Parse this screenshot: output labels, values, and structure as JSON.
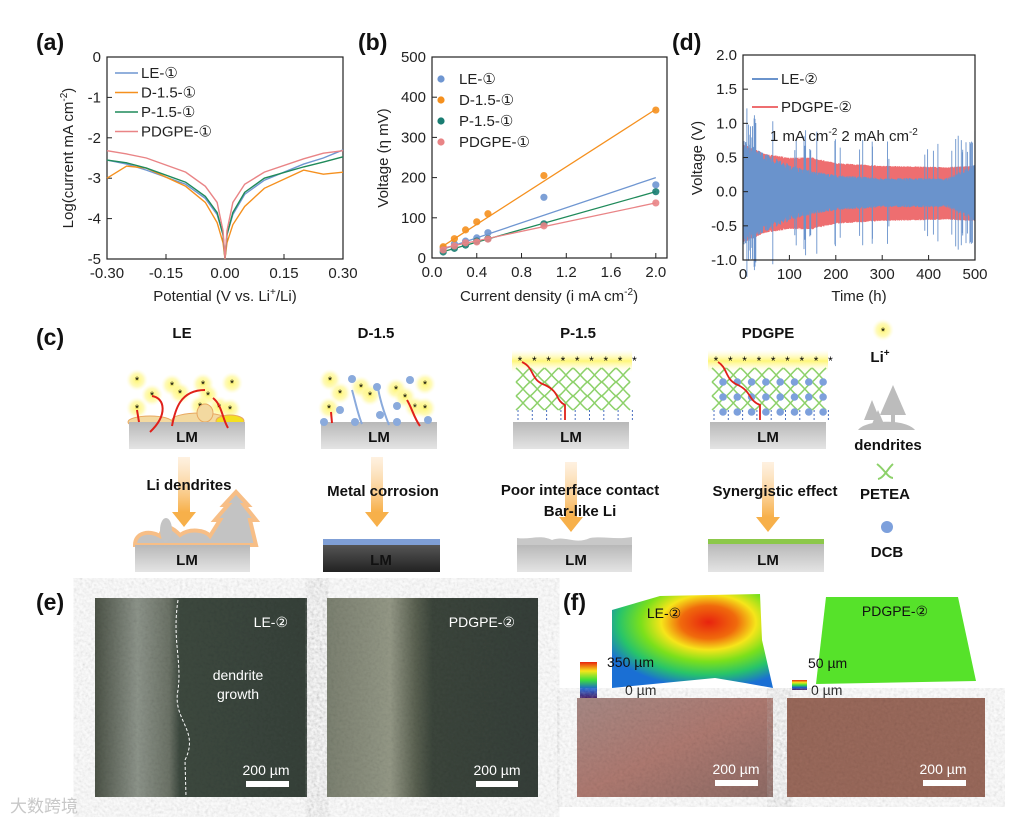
{
  "panel_labels": {
    "a": "(a)",
    "b": "(b)",
    "c": "(c)",
    "d": "(d)",
    "e": "(e)",
    "f": "(f)"
  },
  "colors": {
    "LE": "#6f96d1",
    "D": "#f5901e",
    "P": "#1f8a5a",
    "PDGPE": "#e98486",
    "P_marker": "#1a7d72",
    "LE_d": "#6a93cc",
    "PDGPE_d": "#ee6e70"
  },
  "chart_data": [
    {
      "id": "a",
      "type": "line",
      "xlabel_parts": [
        "Potential (V vs. Li",
        "+",
        "/Li)"
      ],
      "ylabel_parts": [
        "Log(current mA cm",
        "-2",
        ")"
      ],
      "xlim": [
        -0.3,
        0.3
      ],
      "ylim": [
        -5,
        0
      ],
      "xticks": [
        "-0.30",
        "-0.15",
        "0.00",
        "0.15",
        "0.30"
      ],
      "xtick_values": [
        -0.3,
        -0.15,
        0,
        0.15,
        0.3
      ],
      "yticks": [
        "0",
        "-1",
        "-2",
        "-3",
        "-4",
        "-5"
      ],
      "ytick_values": [
        0,
        -1,
        -2,
        -3,
        -4,
        -5
      ],
      "legend_position": "top-left",
      "x": [
        -0.3,
        -0.25,
        -0.2,
        -0.1,
        -0.05,
        -0.02,
        -0.005,
        0,
        0.005,
        0.02,
        0.05,
        0.1,
        0.2,
        0.25,
        0.3
      ],
      "series": [
        {
          "name": "LE-①",
          "key": "LE",
          "values": [
            -2.55,
            -2.65,
            -2.8,
            -3.15,
            -3.5,
            -3.9,
            -4.4,
            -5,
            -4.4,
            -3.9,
            -3.4,
            -3.05,
            -2.65,
            -2.5,
            -2.3
          ]
        },
        {
          "name": "D-1.5-①",
          "key": "D",
          "values": [
            -3.0,
            -2.7,
            -2.75,
            -3.2,
            -3.6,
            -4.1,
            -4.6,
            -5,
            -4.6,
            -4.15,
            -3.7,
            -3.25,
            -2.8,
            -2.9,
            -2.85
          ]
        },
        {
          "name": "P-1.5-①",
          "key": "P",
          "values": [
            -2.55,
            -2.62,
            -2.75,
            -3.1,
            -3.45,
            -3.85,
            -4.4,
            -5,
            -4.4,
            -3.85,
            -3.35,
            -3.0,
            -2.72,
            -2.6,
            -2.47
          ]
        },
        {
          "name": "PDGPE-①",
          "key": "PDGPE",
          "values": [
            -2.32,
            -2.4,
            -2.5,
            -2.85,
            -3.2,
            -3.6,
            -4.3,
            -5,
            -4.3,
            -3.6,
            -3.15,
            -2.85,
            -2.52,
            -2.38,
            -2.32
          ]
        }
      ]
    },
    {
      "id": "b",
      "type": "scatter",
      "xlabel_parts": [
        "Current density (i mA cm",
        "-2",
        ")"
      ],
      "ylabel": "Voltage (η mV)",
      "xlim": [
        0,
        2.1
      ],
      "ylim": [
        0,
        500
      ],
      "xticks": [
        "0.0",
        "0.4",
        "0.8",
        "1.2",
        "1.6",
        "2.0"
      ],
      "xtick_values": [
        0,
        0.4,
        0.8,
        1.2,
        1.6,
        2.0
      ],
      "yticks": [
        "0",
        "100",
        "200",
        "300",
        "400",
        "500"
      ],
      "ytick_values": [
        0,
        100,
        200,
        300,
        400,
        500
      ],
      "legend_position": "top-left",
      "x": [
        0.1,
        0.2,
        0.3,
        0.4,
        0.5,
        1.0,
        2.0
      ],
      "series": [
        {
          "name": "LE-①",
          "key": "LE",
          "values": [
            25,
            35,
            42,
            50,
            63,
            151,
            182
          ],
          "fit": [
            [
              0.1,
              22
            ],
            [
              2.0,
              200
            ]
          ]
        },
        {
          "name": "D-1.5-①",
          "key": "D",
          "values": [
            28,
            48,
            70,
            90,
            110,
            205,
            368
          ],
          "fit": [
            [
              0.1,
              30
            ],
            [
              2.0,
              370
            ]
          ]
        },
        {
          "name": "P-1.5-①",
          "key": "P",
          "values": [
            15,
            24,
            32,
            42,
            48,
            85,
            165
          ],
          "fit": [
            [
              0.1,
              16
            ],
            [
              2.0,
              165
            ]
          ]
        },
        {
          "name": "PDGPE-①",
          "key": "PDGPE",
          "values": [
            20,
            30,
            38,
            40,
            47,
            80,
            137
          ],
          "fit": [
            [
              0.1,
              25
            ],
            [
              2.0,
              137
            ]
          ]
        }
      ]
    },
    {
      "id": "d",
      "type": "line",
      "xlabel": "Time (h)",
      "ylabel": "Voltage (V)",
      "xlim": [
        0,
        500
      ],
      "ylim": [
        -1.0,
        2.0
      ],
      "xticks": [
        "0",
        "100",
        "200",
        "300",
        "400",
        "500"
      ],
      "xtick_values": [
        0,
        100,
        200,
        300,
        400,
        500
      ],
      "yticks": [
        "-1.0",
        "-0.5",
        "0.0",
        "0.5",
        "1.0",
        "1.5",
        "2.0"
      ],
      "ytick_values": [
        -1,
        -0.5,
        0,
        0.5,
        1,
        1.5,
        2
      ],
      "legend_position": "top-left",
      "annotation_parts": [
        "1 mA cm",
        "-2",
        " 2 mAh cm",
        "-2"
      ],
      "envelope_time": [
        0,
        50,
        100,
        150,
        200,
        300,
        440,
        500
      ],
      "series": [
        {
          "name": "LE-②",
          "key": "LE_d",
          "amplitude": [
            0.75,
            0.55,
            0.4,
            0.3,
            0.25,
            0.2,
            0.2,
            0.4
          ]
        },
        {
          "name": "PDGPE-②",
          "key": "PDGPE_d",
          "amplitude": [
            0.7,
            0.55,
            0.5,
            0.5,
            0.42,
            0.38,
            0.36,
            0.38
          ]
        }
      ]
    }
  ],
  "schematic": {
    "columns": [
      {
        "title": "LE",
        "caption": [
          "Li dendrites"
        ]
      },
      {
        "title": "D-1.5",
        "caption": [
          "Metal corrosion"
        ]
      },
      {
        "title": "P-1.5",
        "caption": [
          "Poor interface contact",
          "Bar-like Li"
        ]
      },
      {
        "title": "PDGPE",
        "caption": [
          "Synergistic effect"
        ]
      }
    ],
    "lm_label": "LM",
    "legend": {
      "li_symbol": "*",
      "li": "Li",
      "li_sup": "+",
      "dendrites": "dendrites",
      "petea": "PETEA",
      "dcb": "DCB"
    }
  },
  "panel_e": {
    "left_label": "LE-②",
    "annotation": [
      "dendrite",
      "growth"
    ],
    "right_label": "PDGPE-②",
    "scale": "200 µm"
  },
  "panel_f": {
    "left_label": "LE-②",
    "left_max": "350 µm",
    "left_min": "0 µm",
    "right_label": "PDGPE-②",
    "right_max": "50 µm",
    "right_min": "0  µm",
    "scale": "200 µm"
  },
  "watermark": "大数跨境"
}
